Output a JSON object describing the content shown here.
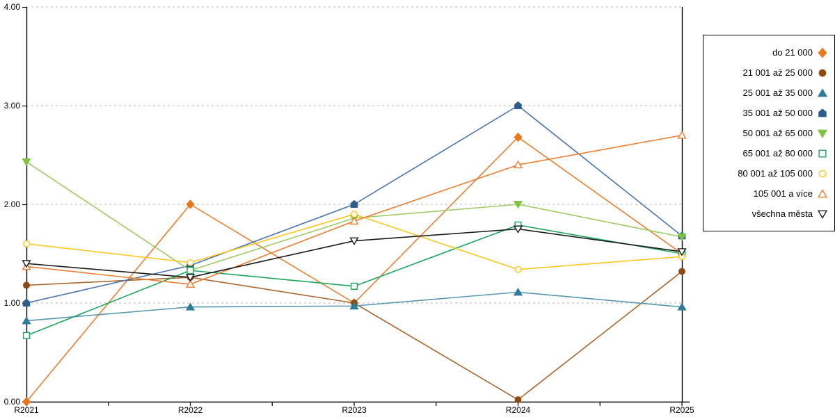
{
  "chart_data": {
    "type": "line",
    "title": "",
    "xlabel": "",
    "ylabel": "",
    "categories": [
      "R2021",
      "R2022",
      "R2023",
      "R2024",
      "R2025"
    ],
    "ylim": [
      0,
      4
    ],
    "ytick_labels": [
      "0.00",
      "1.00",
      "2.00",
      "3.00",
      "4.00"
    ],
    "grid": "horizontal-dashed",
    "grid_color": "#b3b3b3",
    "axis_color": "#000000",
    "legend_position": "right",
    "series": [
      {
        "name": "do 21 000",
        "shape": "diamond",
        "filled": true,
        "color": "#ED7D31",
        "marker_color": "#E8761B",
        "values": [
          0.0,
          2.0,
          1.0,
          2.68,
          1.5
        ]
      },
      {
        "name": "21 001 až 25 000",
        "shape": "circle",
        "filled": true,
        "color": "#A9672E",
        "marker_color": "#8F4A12",
        "values": [
          1.18,
          1.26,
          1.0,
          0.02,
          1.32
        ]
      },
      {
        "name": "25 001 až 35 000",
        "shape": "triangle-up",
        "filled": true,
        "color": "#5596B0",
        "marker_color": "#2E7D98",
        "values": [
          0.82,
          0.96,
          0.97,
          1.11,
          0.96
        ]
      },
      {
        "name": "35 001 až 50 000",
        "shape": "pentagon",
        "filled": true,
        "color": "#4A73AE",
        "marker_color": "#2E5E8E",
        "values": [
          1.0,
          1.38,
          2.0,
          3.0,
          1.68
        ]
      },
      {
        "name": "50 001 až 65 000",
        "shape": "triangle-down",
        "filled": true,
        "color": "#9CCB62",
        "marker_color": "#7FC241",
        "values": [
          2.43,
          1.33,
          1.86,
          2.0,
          1.67
        ]
      },
      {
        "name": "65 001 až 80 000",
        "shape": "square",
        "filled": false,
        "color": "#1CA65B",
        "marker_color": "#1CA65B",
        "values": [
          0.67,
          1.33,
          1.17,
          1.79,
          1.5
        ]
      },
      {
        "name": "80 001 až 105 000",
        "shape": "circle",
        "filled": false,
        "color": "#FFC61E",
        "marker_color": "#FFC61E",
        "values": [
          1.6,
          1.41,
          1.9,
          1.34,
          1.47
        ]
      },
      {
        "name": "105 001 a více",
        "shape": "triangle-up",
        "filled": false,
        "color": "#ED7D31",
        "marker_color": "#ED7D31",
        "values": [
          1.37,
          1.19,
          1.83,
          2.4,
          2.7
        ]
      },
      {
        "name": "všechna města",
        "shape": "triangle-down",
        "filled": false,
        "color": "#1A1A1A",
        "marker_color": "#1A1A1A",
        "values": [
          1.4,
          1.26,
          1.63,
          1.75,
          1.52
        ]
      }
    ]
  }
}
